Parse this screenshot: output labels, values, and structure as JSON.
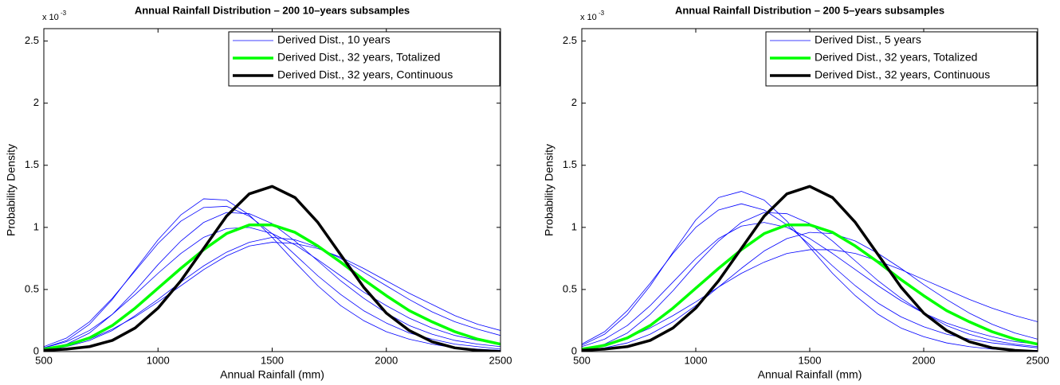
{
  "chart_data": [
    {
      "type": "line",
      "title": "Annual Rainfall Distribution – 200 10–years subsamples",
      "xlabel": "Annual Rainfall (mm)",
      "ylabel": "Probability Density",
      "y_scale_label": "x 10",
      "y_scale_exponent": "-3",
      "x": [
        500,
        600,
        700,
        800,
        900,
        1000,
        1100,
        1200,
        1300,
        1400,
        1500,
        1600,
        1700,
        1800,
        1900,
        2000,
        2100,
        2200,
        2300,
        2400,
        2500
      ],
      "xlim": [
        500,
        2500
      ],
      "ylim": [
        0,
        2.6
      ],
      "xticks": [
        500,
        1000,
        1500,
        2000,
        2500
      ],
      "yticks": [
        0,
        0.5,
        1,
        1.5,
        2,
        2.5
      ],
      "legend": "upper right",
      "series": [
        {
          "name": "Derived Dist., 10 years",
          "color": "#0000ff",
          "width": 0.8,
          "values": [
            [
              0.03,
              0.09,
              0.22,
              0.42,
              0.66,
              0.9,
              1.1,
              1.23,
              1.22,
              1.1,
              0.92,
              0.72,
              0.53,
              0.37,
              0.25,
              0.16,
              0.1,
              0.06,
              0.03,
              0.02,
              0.01
            ],
            [
              0.02,
              0.06,
              0.15,
              0.3,
              0.49,
              0.7,
              0.89,
              1.04,
              1.12,
              1.11,
              1.03,
              0.89,
              0.73,
              0.57,
              0.43,
              0.31,
              0.21,
              0.14,
              0.09,
              0.06,
              0.04
            ],
            [
              0.01,
              0.04,
              0.09,
              0.17,
              0.29,
              0.42,
              0.56,
              0.69,
              0.8,
              0.88,
              0.92,
              0.9,
              0.84,
              0.75,
              0.64,
              0.53,
              0.42,
              0.32,
              0.24,
              0.18,
              0.13
            ],
            [
              0.03,
              0.08,
              0.17,
              0.3,
              0.46,
              0.63,
              0.79,
              0.92,
              0.99,
              1.0,
              0.95,
              0.86,
              0.74,
              0.61,
              0.48,
              0.37,
              0.27,
              0.19,
              0.13,
              0.09,
              0.06
            ],
            [
              0.02,
              0.05,
              0.1,
              0.18,
              0.28,
              0.4,
              0.53,
              0.66,
              0.77,
              0.85,
              0.88,
              0.87,
              0.83,
              0.76,
              0.67,
              0.57,
              0.47,
              0.38,
              0.29,
              0.22,
              0.17
            ],
            [
              0.04,
              0.11,
              0.24,
              0.43,
              0.65,
              0.87,
              1.05,
              1.16,
              1.17,
              1.09,
              0.95,
              0.78,
              0.61,
              0.46,
              0.33,
              0.23,
              0.15,
              0.1,
              0.06,
              0.04,
              0.02
            ]
          ]
        },
        {
          "name": "Derived Dist., 32 years, Totalized",
          "color": "#00ff00",
          "width": 3.5,
          "values": [
            0.02,
            0.05,
            0.11,
            0.21,
            0.35,
            0.51,
            0.67,
            0.82,
            0.95,
            1.02,
            1.02,
            0.96,
            0.85,
            0.72,
            0.58,
            0.45,
            0.33,
            0.24,
            0.16,
            0.1,
            0.06
          ]
        },
        {
          "name": "Derived Dist., 32 years, Continuous",
          "color": "#000000",
          "width": 3.5,
          "values": [
            0.01,
            0.02,
            0.04,
            0.09,
            0.19,
            0.35,
            0.57,
            0.83,
            1.09,
            1.27,
            1.33,
            1.24,
            1.04,
            0.78,
            0.52,
            0.31,
            0.17,
            0.08,
            0.03,
            0.01,
            0
          ]
        }
      ]
    },
    {
      "type": "line",
      "title": "Annual Rainfall Distribution – 200 5–years subsamples",
      "xlabel": "Annual Rainfall (mm)",
      "ylabel": "Probability Density",
      "y_scale_label": "x 10",
      "y_scale_exponent": "-3",
      "x": [
        500,
        600,
        700,
        800,
        900,
        1000,
        1100,
        1200,
        1300,
        1400,
        1500,
        1600,
        1700,
        1800,
        1900,
        2000,
        2100,
        2200,
        2300,
        2400,
        2500
      ],
      "xlim": [
        500,
        2500
      ],
      "ylim": [
        0,
        2.6
      ],
      "xticks": [
        500,
        1000,
        1500,
        2000,
        2500
      ],
      "yticks": [
        0,
        0.5,
        1,
        1.5,
        2,
        2.5
      ],
      "legend": "upper right",
      "series": [
        {
          "name": "Derived Dist., 5 years",
          "color": "#0000ff",
          "width": 0.8,
          "values": [
            [
              0.05,
              0.14,
              0.3,
              0.53,
              0.8,
              1.06,
              1.24,
              1.29,
              1.22,
              1.05,
              0.84,
              0.63,
              0.45,
              0.3,
              0.19,
              0.12,
              0.07,
              0.04,
              0.02,
              0.01,
              0.01
            ],
            [
              0.02,
              0.06,
              0.15,
              0.3,
              0.49,
              0.7,
              0.89,
              1.04,
              1.12,
              1.11,
              1.03,
              0.89,
              0.73,
              0.57,
              0.43,
              0.31,
              0.21,
              0.14,
              0.09,
              0.06,
              0.04
            ],
            [
              0.02,
              0.05,
              0.11,
              0.19,
              0.29,
              0.4,
              0.52,
              0.63,
              0.72,
              0.79,
              0.82,
              0.82,
              0.79,
              0.73,
              0.66,
              0.58,
              0.5,
              0.42,
              0.35,
              0.29,
              0.24
            ],
            [
              0.04,
              0.1,
              0.21,
              0.37,
              0.56,
              0.75,
              0.91,
              1.01,
              1.04,
              1.0,
              0.91,
              0.79,
              0.66,
              0.53,
              0.41,
              0.31,
              0.23,
              0.17,
              0.12,
              0.08,
              0.06
            ],
            [
              0.01,
              0.03,
              0.07,
              0.14,
              0.24,
              0.37,
              0.52,
              0.67,
              0.81,
              0.91,
              0.96,
              0.95,
              0.89,
              0.79,
              0.67,
              0.54,
              0.42,
              0.31,
              0.22,
              0.15,
              0.1
            ],
            [
              0.06,
              0.16,
              0.33,
              0.55,
              0.79,
              1.0,
              1.14,
              1.19,
              1.14,
              1.02,
              0.86,
              0.69,
              0.53,
              0.39,
              0.28,
              0.2,
              0.14,
              0.1,
              0.07,
              0.05,
              0.03
            ]
          ]
        },
        {
          "name": "Derived Dist., 32 years, Totalized",
          "color": "#00ff00",
          "width": 3.5,
          "values": [
            0.02,
            0.05,
            0.11,
            0.21,
            0.35,
            0.51,
            0.67,
            0.82,
            0.95,
            1.02,
            1.02,
            0.96,
            0.85,
            0.72,
            0.58,
            0.45,
            0.33,
            0.24,
            0.16,
            0.1,
            0.06
          ]
        },
        {
          "name": "Derived Dist., 32 years, Continuous",
          "color": "#000000",
          "width": 3.5,
          "values": [
            0.01,
            0.02,
            0.04,
            0.09,
            0.19,
            0.35,
            0.57,
            0.83,
            1.09,
            1.27,
            1.33,
            1.24,
            1.04,
            0.78,
            0.52,
            0.31,
            0.17,
            0.08,
            0.03,
            0.01,
            0
          ]
        }
      ]
    }
  ]
}
